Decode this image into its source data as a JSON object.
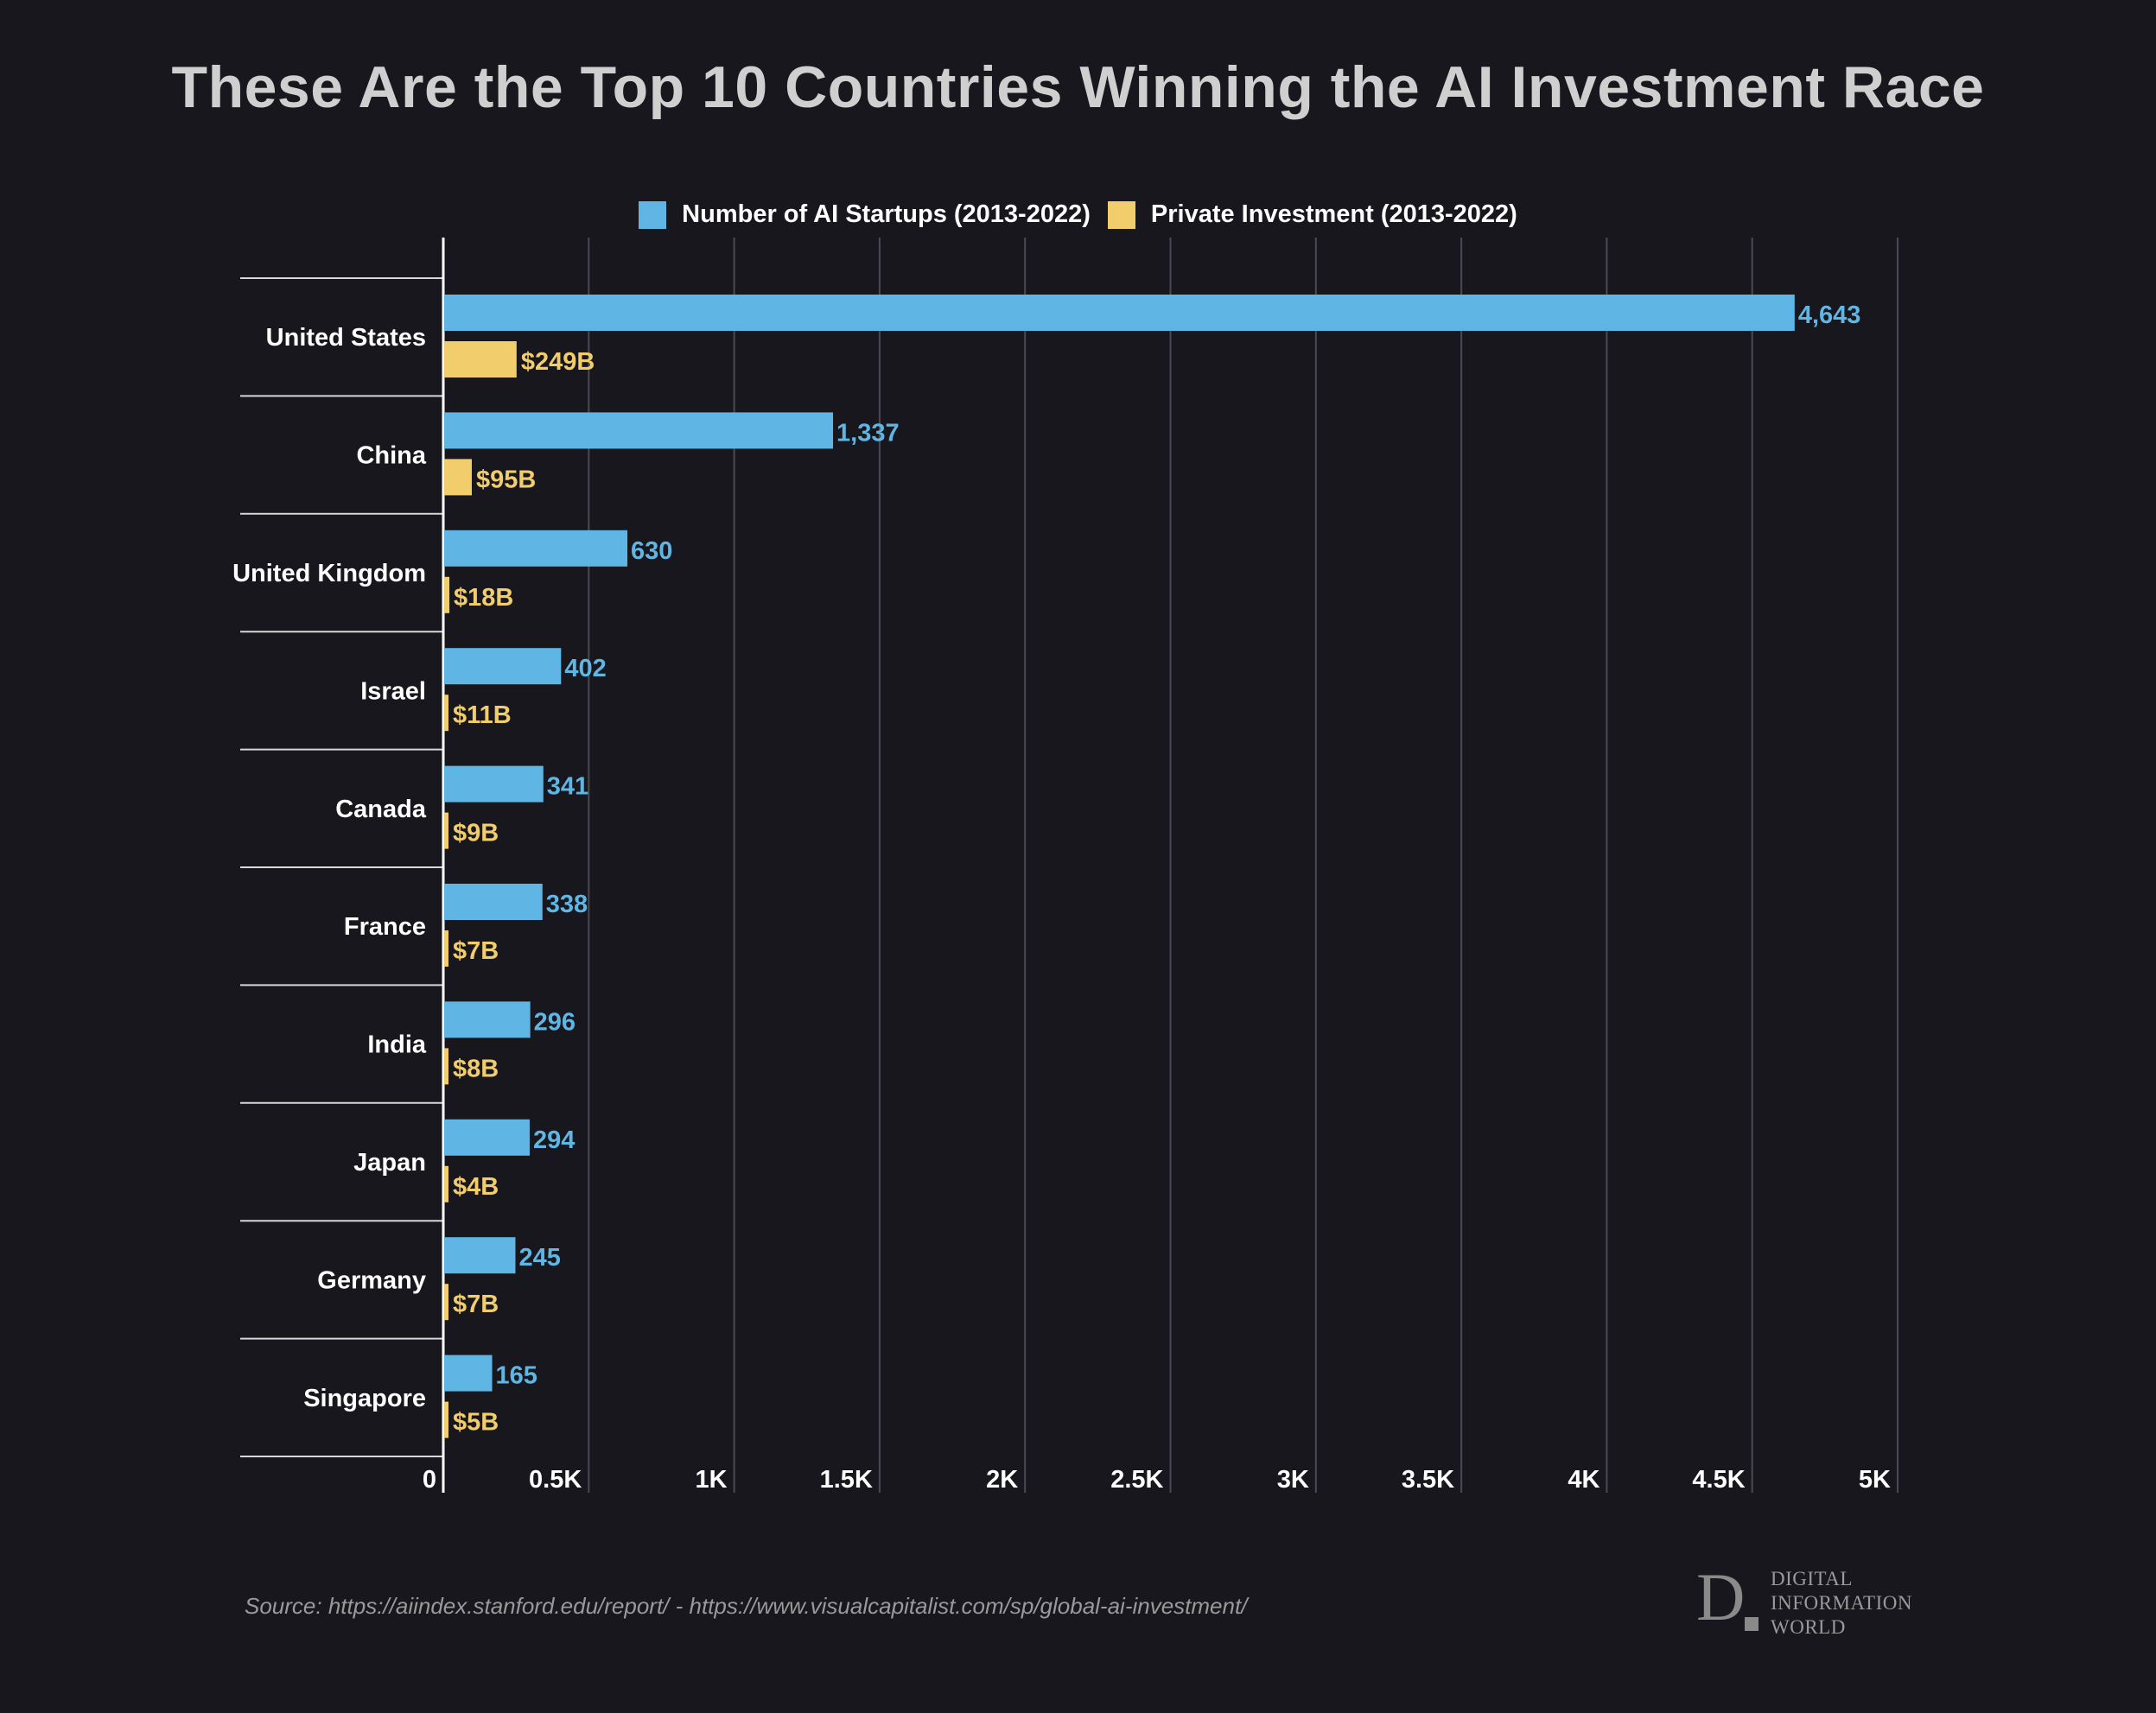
{
  "title": "These Are the Top 10 Countries Winning the AI Investment Race",
  "source": "Source: https://aiindex.stanford.edu/report/ - https://www.visualcapitalist.com/sp/global-ai-investment/",
  "logo": {
    "mark": "D",
    "lines": [
      "DIGITAL",
      "INFORMATION",
      "WORLD"
    ]
  },
  "colors": {
    "startups": "#5fb6e4",
    "investment": "#f1cd6c",
    "background": "#17171d",
    "grid": "#4a4a52"
  },
  "chart_data": {
    "type": "bar",
    "orientation": "horizontal",
    "title": "These Are the Top 10 Countries Winning the AI Investment Race",
    "categories": [
      "United States",
      "China",
      "United Kingdom",
      "Israel",
      "Canada",
      "France",
      "India",
      "Japan",
      "Germany",
      "Singapore"
    ],
    "series": [
      {
        "name": "Number of AI Startups (2013-2022)",
        "values": [
          4643,
          1337,
          630,
          402,
          341,
          338,
          296,
          294,
          245,
          165
        ],
        "labels": [
          "4,643",
          "1,337",
          "630",
          "402",
          "341",
          "338",
          "296",
          "294",
          "245",
          "165"
        ]
      },
      {
        "name": "Private Investment (2013-2022)",
        "values": [
          249,
          95,
          18,
          11,
          9,
          7,
          8,
          4,
          7,
          5
        ],
        "labels": [
          "$249B",
          "$95B",
          "$18B",
          "$11B",
          "$9B",
          "$7B",
          "$8B",
          "$4B",
          "$7B",
          "$5B"
        ]
      }
    ],
    "xlim": [
      0,
      5000
    ],
    "xticks": [
      0,
      500,
      1000,
      1500,
      2000,
      2500,
      3000,
      3500,
      4000,
      4500,
      5000
    ],
    "xtick_labels": [
      "0",
      "0.5K",
      "1K",
      "1.5K",
      "2K",
      "2.5K",
      "3K",
      "3.5K",
      "4K",
      "4.5K",
      "5K"
    ],
    "grid": true,
    "legend": "top-center"
  }
}
